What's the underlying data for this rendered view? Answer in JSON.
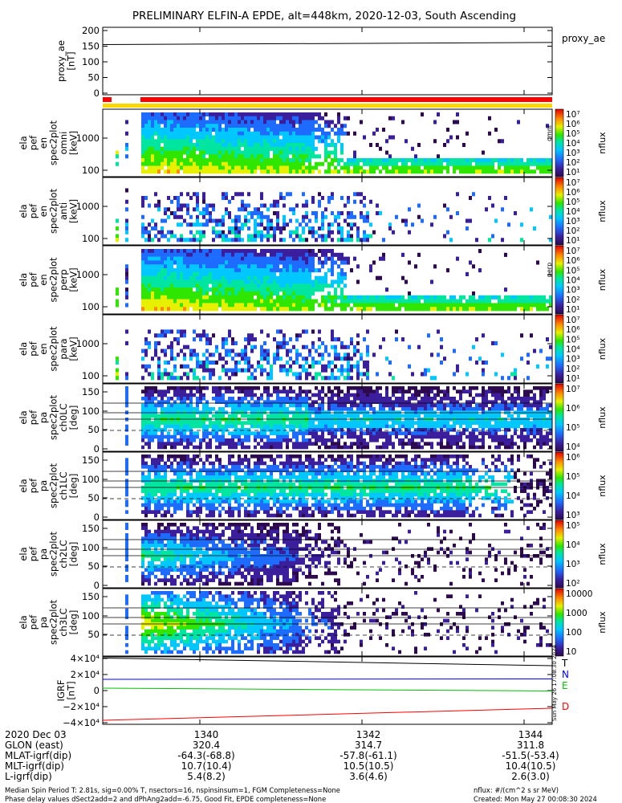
{
  "title": "PRELIMINARY ELFIN-A EPDE, alt=448km, 2020-12-03, South Ascending",
  "chart_data": [
    {
      "type": "line",
      "id": "proxy_ae",
      "ylabel": [
        "proxy_ae",
        "[nT]"
      ],
      "legend": "proxy_ae",
      "yticks": [
        "200",
        "150",
        "100",
        "50",
        "0"
      ],
      "ylim": [
        0,
        200
      ],
      "x": [
        "1338.5",
        "1344.5"
      ],
      "series": [
        {
          "values": [
            155,
            162
          ]
        }
      ]
    },
    {
      "type": "heatmap",
      "id": "spec-energy-1",
      "ylabel": [
        "ela",
        "pef",
        "en",
        "spec2plot",
        "omni",
        "[keV]"
      ],
      "yticks": [
        "1000",
        "100"
      ],
      "colorbar_label": "nflux",
      "colorbar_ticks": [
        "10⁷",
        "10⁶",
        "10⁵",
        "10⁴",
        "10³",
        "10²",
        "10¹"
      ],
      "colorbar_side": "omni"
    },
    {
      "type": "heatmap",
      "id": "spec-energy-2",
      "ylabel": [
        "ela",
        "pef",
        "en",
        "spec2plot",
        "anti",
        "[keV]"
      ],
      "yticks": [
        "1000",
        "100"
      ],
      "colorbar_label": "nflux",
      "colorbar_ticks": [
        "10⁷",
        "10⁶",
        "10⁵",
        "10⁴",
        "10³",
        "10²",
        "10¹"
      ]
    },
    {
      "type": "heatmap",
      "id": "spec-energy-3",
      "ylabel": [
        "ela",
        "pef",
        "en",
        "spec2plot",
        "perp",
        "[keV]"
      ],
      "yticks": [
        "1000",
        "100"
      ],
      "colorbar_label": "nflux",
      "colorbar_ticks": [
        "10⁷",
        "10⁶",
        "10⁵",
        "10⁴",
        "10³",
        "10²",
        "10¹"
      ],
      "colorbar_side": "perp"
    },
    {
      "type": "heatmap",
      "id": "spec-energy-4",
      "ylabel": [
        "ela",
        "pef",
        "en",
        "spec2plot",
        "para",
        "[keV]"
      ],
      "yticks": [
        "1000",
        "100"
      ],
      "colorbar_label": "nflux",
      "colorbar_ticks": [
        "10⁷",
        "10⁶",
        "10⁵",
        "10⁴",
        "10³",
        "10²",
        "10¹"
      ]
    },
    {
      "type": "heatmap",
      "id": "spec-pa-ch0",
      "ylabel": [
        "ela",
        "pef",
        "pa",
        "spec2plot",
        "ch0LC",
        "[deg]"
      ],
      "yticks": [
        "150",
        "100",
        "50",
        "0"
      ],
      "ylim": [
        0,
        180
      ],
      "colorbar_label": "nflux",
      "colorbar_ticks": [
        "10⁷",
        "10⁶",
        "10⁵",
        "10⁴"
      ]
    },
    {
      "type": "heatmap",
      "id": "spec-pa-ch1",
      "ylabel": [
        "ela",
        "pef",
        "pa",
        "spec2plot",
        "ch1LC",
        "[deg]"
      ],
      "yticks": [
        "150",
        "100",
        "50",
        "0"
      ],
      "ylim": [
        0,
        180
      ],
      "colorbar_label": "nflux",
      "colorbar_ticks": [
        "10⁶",
        "10⁵",
        "10⁴",
        "10³"
      ]
    },
    {
      "type": "heatmap",
      "id": "spec-pa-ch2",
      "ylabel": [
        "ela",
        "pef",
        "pa",
        "spec2plot",
        "ch2LC",
        "[deg]"
      ],
      "yticks": [
        "150",
        "100",
        "50",
        "0"
      ],
      "ylim": [
        0,
        180
      ],
      "colorbar_label": "nflux",
      "colorbar_ticks": [
        "10⁵",
        "10⁴",
        "10³",
        "10²"
      ]
    },
    {
      "type": "heatmap",
      "id": "spec-pa-ch3",
      "ylabel": [
        "ela",
        "pef",
        "pa",
        "spec2plot",
        "ch3LC",
        "[deg]"
      ],
      "yticks": [
        "150",
        "100",
        "50"
      ],
      "ylim": [
        0,
        180
      ],
      "colorbar_label": "nflux",
      "colorbar_ticks": [
        "10000",
        "1000",
        "100",
        "10"
      ]
    },
    {
      "type": "line",
      "id": "igrf",
      "ylabel": [
        "IGRF",
        "[nT]"
      ],
      "yticks": [
        "4×10⁴",
        "2×10⁴",
        "0",
        "−2×10⁴",
        "−4×10⁴"
      ],
      "ylim": [
        -40000,
        40000
      ],
      "x": [
        "1338.5",
        "1344.5"
      ],
      "legend": [
        "T",
        "N",
        "E",
        "D"
      ],
      "series": [
        {
          "name": "T",
          "color": "#000000",
          "values": [
            40500,
            31000
          ]
        },
        {
          "name": "N",
          "color": "#0000ff",
          "values": [
            14000,
            14500
          ]
        },
        {
          "name": "E",
          "color": "#00c000",
          "values": [
            3000,
            -500
          ]
        },
        {
          "name": "D",
          "color": "#ff0000",
          "values": [
            -37000,
            -22000
          ]
        }
      ]
    }
  ],
  "ephemeris": {
    "labels": [
      "2020 Dec 03",
      "GLON (east)",
      "MLAT-igrf(dip)",
      "MLT-igrf(dip)",
      "L-igrf(dip)"
    ],
    "columns": [
      {
        "time": "1340",
        "glon": "320.4",
        "mlat": "-64.3(-68.8)",
        "mlt": "10.7(10.4)",
        "l": "5.4(8.2)"
      },
      {
        "time": "1342",
        "glon": "314.7",
        "mlat": "-57.8(-61.1)",
        "mlt": "10.5(10.5)",
        "l": "3.6(4.6)"
      },
      {
        "time": "1344",
        "glon": "311.8",
        "mlat": "-51.5(-53.4)",
        "mlt": "10.4(10.5)",
        "l": "2.6(3.0)"
      }
    ]
  },
  "footer": {
    "line1": "Median Spin Period T: 2.81s, sig=0.00% T, nsectors=16, nspinsinsum=1, FGM Completeness=None",
    "line2": "Phase delay values dSect2add=2 and dPhAng2add=-6.75, Good Fit, EPDE completeness=None",
    "units": "nflux: #/(cm^2 s sr MeV)",
    "created": "Created: Mon May 27 00:08:30 2024",
    "side_stamp": "Sun May 26 17:08:30 2024"
  },
  "colors": {
    "status_bar": "#ff0000",
    "status_bar_yellow": "#ffd700"
  }
}
